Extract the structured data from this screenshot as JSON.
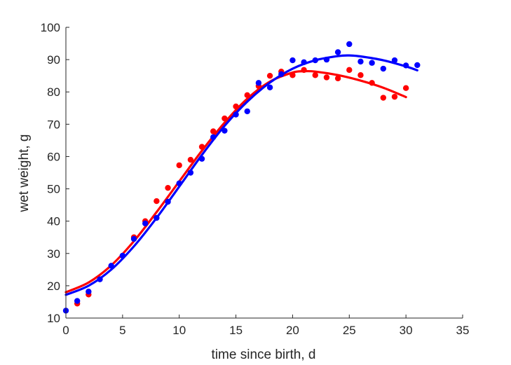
{
  "chart_data": {
    "type": "scatter",
    "title": "",
    "xlabel": "time since birth, d",
    "ylabel": "wet weight, g",
    "xlim": [
      0,
      35
    ],
    "ylim": [
      10,
      100
    ],
    "xticks": [
      0,
      5,
      10,
      15,
      20,
      25,
      30,
      35
    ],
    "yticks": [
      10,
      20,
      30,
      40,
      50,
      60,
      70,
      80,
      90,
      100
    ],
    "grid": false,
    "legend": "none",
    "series": [
      {
        "color": "#0000ff",
        "points": [
          [
            0,
            12.3
          ],
          [
            1,
            15.3
          ],
          [
            2,
            18.2
          ],
          [
            3,
            22.0
          ],
          [
            4,
            26.2
          ],
          [
            5,
            29.3
          ],
          [
            6,
            34.5
          ],
          [
            7,
            39.3
          ],
          [
            8,
            41.0
          ],
          [
            9,
            46.0
          ],
          [
            10,
            51.7
          ],
          [
            11,
            55.0
          ],
          [
            12,
            59.3
          ],
          [
            13,
            66.0
          ],
          [
            14,
            68.0
          ],
          [
            15,
            73.0
          ],
          [
            16,
            74.0
          ],
          [
            17,
            82.8
          ],
          [
            18,
            81.4
          ],
          [
            19,
            85.5
          ],
          [
            20,
            89.8
          ],
          [
            21,
            89.2
          ],
          [
            22,
            89.8
          ],
          [
            23,
            90.0
          ],
          [
            24,
            92.3
          ],
          [
            25,
            94.8
          ],
          [
            26,
            89.4
          ],
          [
            27,
            89.0
          ],
          [
            28,
            87.2
          ],
          [
            29,
            89.8
          ],
          [
            30,
            88.2
          ],
          [
            31,
            88.3
          ]
        ],
        "fit": [
          [
            0,
            17.2
          ],
          [
            2,
            20.0
          ],
          [
            4,
            25.0
          ],
          [
            6,
            32.2
          ],
          [
            8,
            41.0
          ],
          [
            10,
            50.7
          ],
          [
            12,
            60.5
          ],
          [
            14,
            69.5
          ],
          [
            16,
            77.0
          ],
          [
            18,
            82.9
          ],
          [
            20,
            87.2
          ],
          [
            22,
            89.8
          ],
          [
            24,
            91.1
          ],
          [
            25,
            91.3
          ],
          [
            26,
            91.0
          ],
          [
            28,
            89.8
          ],
          [
            30,
            87.9
          ],
          [
            31,
            86.7
          ]
        ]
      },
      {
        "color": "#ff0000",
        "points": [
          [
            1,
            14.5
          ],
          [
            2,
            17.3
          ],
          [
            6,
            35.0
          ],
          [
            7,
            40.0
          ],
          [
            8,
            46.2
          ],
          [
            9,
            50.3
          ],
          [
            10,
            57.3
          ],
          [
            11,
            59.0
          ],
          [
            12,
            63.0
          ],
          [
            13,
            67.8
          ],
          [
            14,
            71.8
          ],
          [
            15,
            75.5
          ],
          [
            16,
            79.0
          ],
          [
            17,
            81.8
          ],
          [
            18,
            85.0
          ],
          [
            19,
            86.3
          ],
          [
            20,
            85.2
          ],
          [
            21,
            86.8
          ],
          [
            22,
            85.2
          ],
          [
            23,
            84.5
          ],
          [
            24,
            84.2
          ],
          [
            25,
            86.8
          ],
          [
            26,
            85.2
          ],
          [
            27,
            82.8
          ],
          [
            28,
            78.2
          ],
          [
            29,
            78.5
          ],
          [
            30,
            81.2
          ]
        ],
        "fit": [
          [
            0,
            18.0
          ],
          [
            2,
            21.0
          ],
          [
            4,
            26.3
          ],
          [
            6,
            33.8
          ],
          [
            8,
            42.8
          ],
          [
            10,
            52.3
          ],
          [
            12,
            61.8
          ],
          [
            14,
            70.5
          ],
          [
            16,
            77.9
          ],
          [
            18,
            83.2
          ],
          [
            20,
            86.0
          ],
          [
            21,
            86.4
          ],
          [
            22,
            86.3
          ],
          [
            24,
            85.2
          ],
          [
            26,
            83.5
          ],
          [
            28,
            81.3
          ],
          [
            30,
            78.4
          ]
        ]
      }
    ]
  }
}
